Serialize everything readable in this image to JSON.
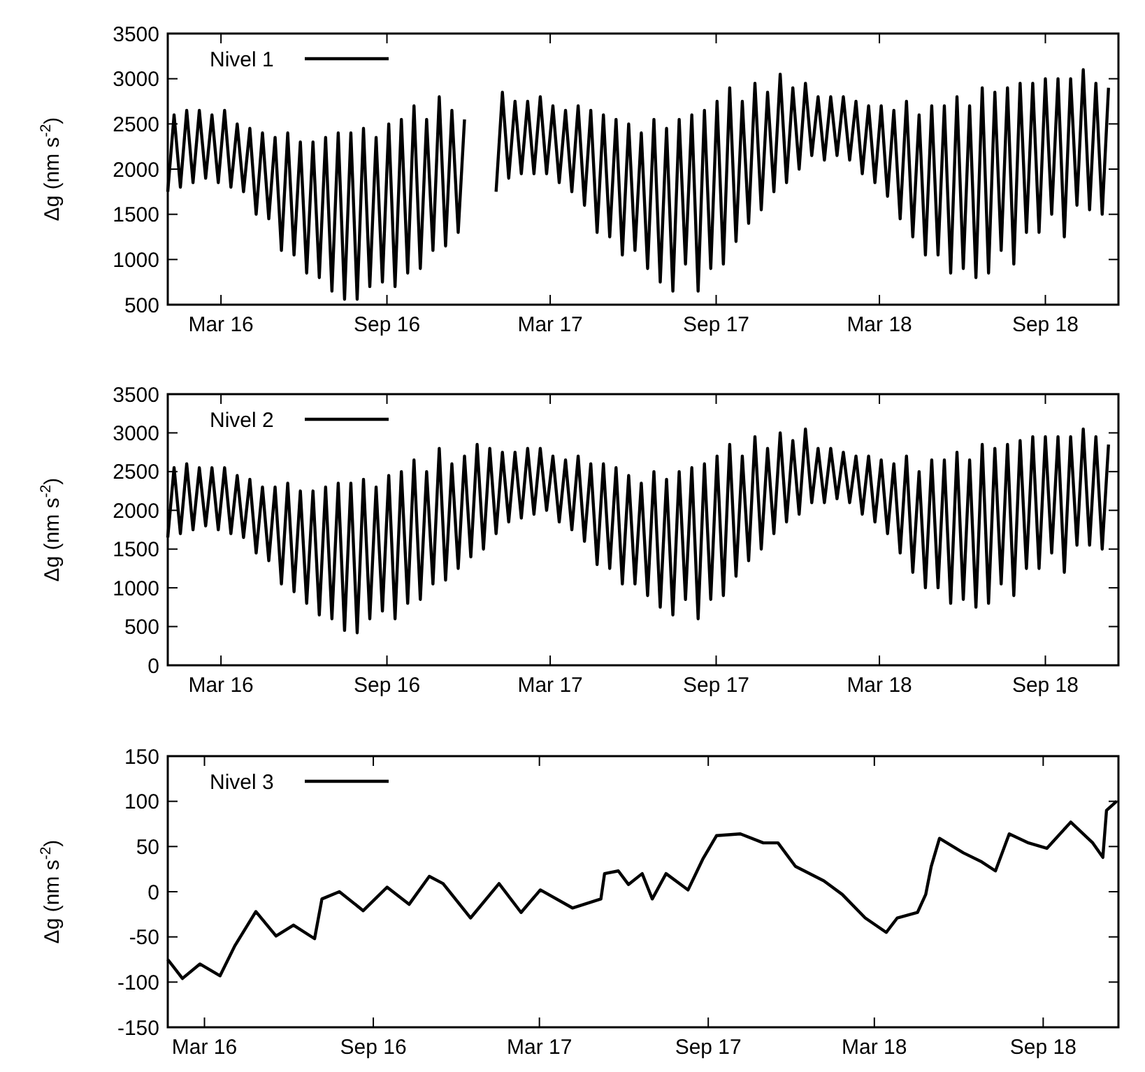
{
  "chart_data": [
    {
      "type": "line",
      "ylabel": "Δg (nm s$^{-2}$)",
      "legend": "top left",
      "grid": false,
      "xlim": [
        "2016-01-02",
        "2018-11-21"
      ],
      "xticks": [
        {
          "value": "2016-03-01",
          "label": "Mar 16"
        },
        {
          "value": "2016-09-01",
          "label": "Sep 16"
        },
        {
          "value": "2017-03-01",
          "label": "Mar 17"
        },
        {
          "value": "2017-09-01",
          "label": "Sep 17"
        },
        {
          "value": "2018-03-01",
          "label": "Mar 18"
        },
        {
          "value": "2018-09-01",
          "label": "Sep 18"
        }
      ],
      "ylim": [
        500,
        3500
      ],
      "yticks": [
        500,
        1000,
        1500,
        2000,
        2500,
        3000,
        3500
      ],
      "x": [
        "2016-01-02",
        "2016-01-09",
        "2016-01-16",
        "2016-01-23",
        "2016-01-30",
        "2016-02-06",
        "2016-02-13",
        "2016-02-20",
        "2016-02-27",
        "2016-03-05",
        "2016-03-12",
        "2016-03-19",
        "2016-03-26",
        "2016-04-02",
        "2016-04-09",
        "2016-04-16",
        "2016-04-23",
        "2016-04-30",
        "2016-05-07",
        "2016-05-14",
        "2016-05-21",
        "2016-05-28",
        "2016-06-04",
        "2016-06-11",
        "2016-06-18",
        "2016-06-25",
        "2016-07-02",
        "2016-07-09",
        "2016-07-16",
        "2016-07-23",
        "2016-07-30",
        "2016-08-06",
        "2016-08-13",
        "2016-08-20",
        "2016-08-27",
        "2016-09-03",
        "2016-09-10",
        "2016-09-17",
        "2016-09-24",
        "2016-10-01",
        "2016-10-08",
        "2016-10-15",
        "2016-10-22",
        "2016-10-29",
        "2016-11-05",
        "2016-11-12",
        "2016-11-19",
        "2016-11-26",
        "2016-12-03",
        "2016-12-10",
        "2016-12-17",
        "2016-12-24",
        "2016-12-31",
        "2017-01-07",
        "2017-01-14",
        "2017-01-21",
        "2017-01-28",
        "2017-02-04",
        "2017-02-11",
        "2017-02-18",
        "2017-02-25",
        "2017-03-04",
        "2017-03-11",
        "2017-03-18",
        "2017-03-25",
        "2017-04-01",
        "2017-04-08",
        "2017-04-15",
        "2017-04-22",
        "2017-04-29",
        "2017-05-06",
        "2017-05-13",
        "2017-05-20",
        "2017-05-27",
        "2017-06-03",
        "2017-06-10",
        "2017-06-17",
        "2017-06-24",
        "2017-07-01",
        "2017-07-08",
        "2017-07-15",
        "2017-07-22",
        "2017-07-29",
        "2017-08-05",
        "2017-08-12",
        "2017-08-19",
        "2017-08-26",
        "2017-09-02",
        "2017-09-09",
        "2017-09-16",
        "2017-09-23",
        "2017-09-30",
        "2017-10-07",
        "2017-10-14",
        "2017-10-21",
        "2017-10-28",
        "2017-11-04",
        "2017-11-11",
        "2017-11-18",
        "2017-11-25",
        "2017-12-02",
        "2017-12-09",
        "2017-12-16",
        "2017-12-23",
        "2017-12-30",
        "2018-01-06",
        "2018-01-13",
        "2018-01-20",
        "2018-01-27",
        "2018-02-03",
        "2018-02-10",
        "2018-02-17",
        "2018-02-24",
        "2018-03-03",
        "2018-03-10",
        "2018-03-17",
        "2018-03-24",
        "2018-03-31",
        "2018-04-07",
        "2018-04-14",
        "2018-04-21",
        "2018-04-28",
        "2018-05-05",
        "2018-05-12",
        "2018-05-19",
        "2018-05-26",
        "2018-06-02",
        "2018-06-09",
        "2018-06-16",
        "2018-06-23",
        "2018-06-30",
        "2018-07-07",
        "2018-07-14",
        "2018-07-21",
        "2018-07-28",
        "2018-08-04",
        "2018-08-11",
        "2018-08-18",
        "2018-08-25",
        "2018-09-01",
        "2018-09-08",
        "2018-09-15",
        "2018-09-22",
        "2018-09-29",
        "2018-10-06",
        "2018-10-13",
        "2018-10-20",
        "2018-10-27",
        "2018-11-03",
        "2018-11-10"
      ],
      "series": [
        {
          "name": "Nivel 1",
          "color": "#000000",
          "values": [
            1750,
            2600,
            1800,
            2650,
            1850,
            2650,
            1900,
            2600,
            1850,
            2650,
            1800,
            2500,
            1750,
            2450,
            1500,
            2400,
            1450,
            2350,
            1100,
            2400,
            1050,
            2300,
            850,
            2300,
            800,
            2350,
            650,
            2400,
            560,
            2400,
            560,
            2450,
            700,
            2350,
            750,
            2500,
            700,
            2550,
            850,
            2700,
            900,
            2550,
            1100,
            2800,
            1150,
            2650,
            1300,
            2550,
            null,
            null,
            null,
            null,
            1750,
            2850,
            1900,
            2750,
            1950,
            2750,
            1950,
            2800,
            1950,
            2700,
            1850,
            2650,
            1750,
            2700,
            1600,
            2650,
            1300,
            2600,
            1250,
            2550,
            1050,
            2500,
            1100,
            2400,
            900,
            2550,
            750,
            2450,
            650,
            2550,
            950,
            2600,
            650,
            2650,
            900,
            2750,
            950,
            2900,
            1200,
            2750,
            1400,
            2950,
            1550,
            2850,
            1750,
            3050,
            1850,
            2900,
            2000,
            2950,
            2150,
            2800,
            2100,
            2800,
            2150,
            2800,
            2100,
            2750,
            1950,
            2700,
            1850,
            2700,
            1700,
            2650,
            1450,
            2750,
            1250,
            2600,
            1050,
            2700,
            1050,
            2700,
            850,
            2800,
            900,
            2700,
            800,
            2900,
            850,
            2850,
            1100,
            2900,
            950,
            2950,
            1300,
            2950,
            1300,
            3000,
            1500,
            3000,
            1250,
            3000,
            1600,
            3100,
            1550,
            2950,
            1500,
            2900
          ]
        }
      ]
    },
    {
      "type": "line",
      "ylabel": "Δg (nm s$^{-2}$)",
      "legend": "top left",
      "grid": false,
      "xlim": [
        "2016-01-02",
        "2018-11-21"
      ],
      "xticks": [
        {
          "value": "2016-03-01",
          "label": "Mar 16"
        },
        {
          "value": "2016-09-01",
          "label": "Sep 16"
        },
        {
          "value": "2017-03-01",
          "label": "Mar 17"
        },
        {
          "value": "2017-09-01",
          "label": "Sep 17"
        },
        {
          "value": "2018-03-01",
          "label": "Mar 18"
        },
        {
          "value": "2018-09-01",
          "label": "Sep 18"
        }
      ],
      "ylim": [
        0,
        3500
      ],
      "yticks": [
        0,
        500,
        1000,
        1500,
        2000,
        2500,
        3000,
        3500
      ],
      "x": [
        "2016-01-02",
        "2016-01-09",
        "2016-01-16",
        "2016-01-23",
        "2016-01-30",
        "2016-02-06",
        "2016-02-13",
        "2016-02-20",
        "2016-02-27",
        "2016-03-05",
        "2016-03-12",
        "2016-03-19",
        "2016-03-26",
        "2016-04-02",
        "2016-04-09",
        "2016-04-16",
        "2016-04-23",
        "2016-04-30",
        "2016-05-07",
        "2016-05-14",
        "2016-05-21",
        "2016-05-28",
        "2016-06-04",
        "2016-06-11",
        "2016-06-18",
        "2016-06-25",
        "2016-07-02",
        "2016-07-09",
        "2016-07-16",
        "2016-07-23",
        "2016-07-30",
        "2016-08-06",
        "2016-08-13",
        "2016-08-20",
        "2016-08-27",
        "2016-09-03",
        "2016-09-10",
        "2016-09-17",
        "2016-09-24",
        "2016-10-01",
        "2016-10-08",
        "2016-10-15",
        "2016-10-22",
        "2016-10-29",
        "2016-11-05",
        "2016-11-12",
        "2016-11-19",
        "2016-11-26",
        "2016-12-03",
        "2016-12-10",
        "2016-12-17",
        "2016-12-24",
        "2016-12-31",
        "2017-01-07",
        "2017-01-14",
        "2017-01-21",
        "2017-01-28",
        "2017-02-04",
        "2017-02-11",
        "2017-02-18",
        "2017-02-25",
        "2017-03-04",
        "2017-03-11",
        "2017-03-18",
        "2017-03-25",
        "2017-04-01",
        "2017-04-08",
        "2017-04-15",
        "2017-04-22",
        "2017-04-29",
        "2017-05-06",
        "2017-05-13",
        "2017-05-20",
        "2017-05-27",
        "2017-06-03",
        "2017-06-10",
        "2017-06-17",
        "2017-06-24",
        "2017-07-01",
        "2017-07-08",
        "2017-07-15",
        "2017-07-22",
        "2017-07-29",
        "2017-08-05",
        "2017-08-12",
        "2017-08-19",
        "2017-08-26",
        "2017-09-02",
        "2017-09-09",
        "2017-09-16",
        "2017-09-23",
        "2017-09-30",
        "2017-10-07",
        "2017-10-14",
        "2017-10-21",
        "2017-10-28",
        "2017-11-04",
        "2017-11-11",
        "2017-11-18",
        "2017-11-25",
        "2017-12-02",
        "2017-12-09",
        "2017-12-16",
        "2017-12-23",
        "2017-12-30",
        "2018-01-06",
        "2018-01-13",
        "2018-01-20",
        "2018-01-27",
        "2018-02-03",
        "2018-02-10",
        "2018-02-17",
        "2018-02-24",
        "2018-03-03",
        "2018-03-10",
        "2018-03-17",
        "2018-03-24",
        "2018-03-31",
        "2018-04-07",
        "2018-04-14",
        "2018-04-21",
        "2018-04-28",
        "2018-05-05",
        "2018-05-12",
        "2018-05-19",
        "2018-05-26",
        "2018-06-02",
        "2018-06-09",
        "2018-06-16",
        "2018-06-23",
        "2018-06-30",
        "2018-07-07",
        "2018-07-14",
        "2018-07-21",
        "2018-07-28",
        "2018-08-04",
        "2018-08-11",
        "2018-08-18",
        "2018-08-25",
        "2018-09-01",
        "2018-09-08",
        "2018-09-15",
        "2018-09-22",
        "2018-09-29",
        "2018-10-06",
        "2018-10-13",
        "2018-10-20",
        "2018-10-27",
        "2018-11-03",
        "2018-11-10"
      ],
      "series": [
        {
          "name": "Nivel 2",
          "color": "#000000",
          "values": [
            1650,
            2550,
            1700,
            2600,
            1750,
            2550,
            1800,
            2550,
            1750,
            2550,
            1700,
            2450,
            1650,
            2400,
            1450,
            2300,
            1350,
            2300,
            1050,
            2350,
            950,
            2250,
            800,
            2250,
            650,
            2300,
            600,
            2350,
            450,
            2350,
            420,
            2400,
            600,
            2300,
            700,
            2450,
            600,
            2500,
            800,
            2650,
            850,
            2500,
            1050,
            2800,
            1100,
            2600,
            1250,
            2700,
            1400,
            2850,
            1500,
            2800,
            1700,
            2750,
            1850,
            2750,
            1900,
            2800,
            1950,
            2800,
            2000,
            2700,
            1850,
            2650,
            1750,
            2700,
            1600,
            2600,
            1300,
            2600,
            1250,
            2550,
            1050,
            2450,
            1050,
            2350,
            900,
            2500,
            750,
            2400,
            650,
            2500,
            850,
            2550,
            600,
            2600,
            850,
            2700,
            900,
            2850,
            1150,
            2700,
            1350,
            2950,
            1500,
            2800,
            1700,
            3000,
            1850,
            2900,
            1950,
            3050,
            2100,
            2800,
            2100,
            2800,
            2150,
            2750,
            2100,
            2700,
            1950,
            2700,
            1850,
            2650,
            1700,
            2600,
            1450,
            2700,
            1200,
            2500,
            1000,
            2650,
            1000,
            2650,
            800,
            2750,
            850,
            2650,
            750,
            2850,
            800,
            2800,
            1050,
            2850,
            900,
            2900,
            1250,
            2950,
            1250,
            2950,
            1450,
            2950,
            1200,
            2950,
            1550,
            3050,
            1550,
            2950,
            1500,
            2850
          ]
        }
      ]
    },
    {
      "type": "line",
      "ylabel": "Δg (nm s$^{-2}$)",
      "legend": "top left",
      "grid": false,
      "xlim": [
        "2016-01-21",
        "2018-11-22"
      ],
      "xticks": [
        {
          "value": "2016-03-01",
          "label": "Mar 16"
        },
        {
          "value": "2016-09-01",
          "label": "Sep 16"
        },
        {
          "value": "2017-03-01",
          "label": "Mar 17"
        },
        {
          "value": "2017-09-01",
          "label": "Sep 17"
        },
        {
          "value": "2018-03-01",
          "label": "Mar 18"
        },
        {
          "value": "2018-09-01",
          "label": "Sep 18"
        }
      ],
      "ylim": [
        -150,
        150
      ],
      "yticks": [
        -150,
        -100,
        -50,
        0,
        50,
        100,
        150
      ],
      "x": [
        "2016-01-21",
        "2016-02-06",
        "2016-02-25",
        "2016-03-18",
        "2016-04-03",
        "2016-04-26",
        "2016-05-18",
        "2016-06-06",
        "2016-06-29",
        "2016-07-07",
        "2016-07-26",
        "2016-08-21",
        "2016-09-16",
        "2016-10-10",
        "2016-11-01",
        "2016-11-16",
        "2016-12-16",
        "2017-01-16",
        "2017-02-09",
        "2017-03-02",
        "2017-04-06",
        "2017-05-07",
        "2017-05-11",
        "2017-05-26",
        "2017-06-06",
        "2017-06-21",
        "2017-07-02",
        "2017-07-17",
        "2017-08-10",
        "2017-08-26",
        "2017-09-10",
        "2017-10-06",
        "2017-10-31",
        "2017-11-16",
        "2017-12-05",
        "2018-01-05",
        "2018-01-25",
        "2018-02-19",
        "2018-03-14",
        "2018-03-26",
        "2018-04-17",
        "2018-04-26",
        "2018-05-02",
        "2018-05-11",
        "2018-06-06",
        "2018-06-26",
        "2018-07-11",
        "2018-07-26",
        "2018-08-16",
        "2018-09-05",
        "2018-10-01",
        "2018-10-25",
        "2018-11-05",
        "2018-11-09",
        "2018-11-20"
      ],
      "series": [
        {
          "name": "Nivel 3",
          "color": "#000000",
          "values": [
            -75,
            -96,
            -80,
            -93,
            -60,
            -22,
            -49,
            -37,
            -52,
            -8,
            0,
            -21,
            5,
            -14,
            17,
            9,
            -29,
            9,
            -23,
            2,
            -18,
            -8,
            20,
            23,
            8,
            20,
            -8,
            20,
            2,
            36,
            62,
            64,
            54,
            54,
            28,
            12,
            -3,
            -29,
            -45,
            -29,
            -23,
            -3,
            28,
            59,
            43,
            33,
            23,
            64,
            54,
            48,
            77,
            54,
            38,
            90,
            100
          ]
        }
      ]
    }
  ]
}
